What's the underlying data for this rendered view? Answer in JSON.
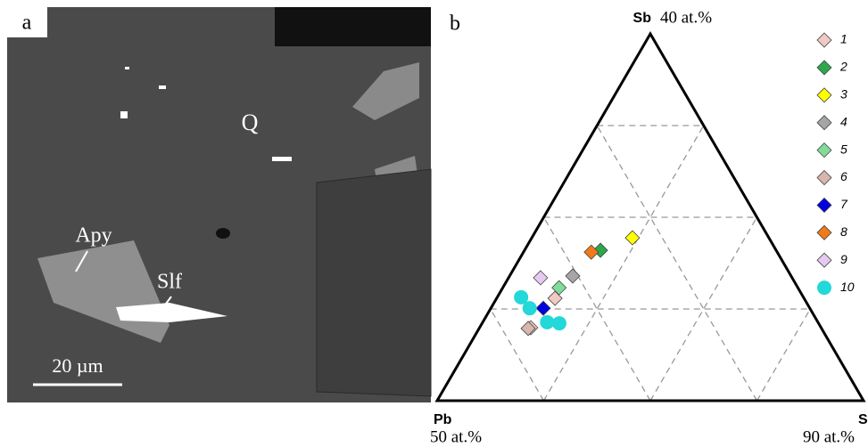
{
  "panel_a": {
    "label": "a",
    "annotations": [
      "Q",
      "Apy",
      "Slf"
    ],
    "scale_bar": "20 µm"
  },
  "chart_data": {
    "type": "ternary",
    "panel_label": "b",
    "corners": {
      "top": "Sb",
      "top_note": "40 at.%",
      "left": "Pb",
      "left_note": "50 at.%",
      "right": "S",
      "right_note": "90 at.%"
    },
    "ticks": [
      25,
      50,
      75
    ],
    "grid": true,
    "series": [
      {
        "name": "1",
        "color": "#f0c8c4",
        "marker": "diamond",
        "top": [
          27.9,
          19.9
        ],
        "right": [
          13.7,
          12.0
        ]
      },
      {
        "name": "2",
        "color": "#2ca84a",
        "marker": "diamond",
        "top": [
          41.0
        ],
        "right": [
          17.8
        ]
      },
      {
        "name": "3",
        "color": "#ffff00",
        "marker": "diamond",
        "top": [
          44.4
        ],
        "right": [
          23.6
        ]
      },
      {
        "name": "4",
        "color": "#a6a6a6",
        "marker": "diamond",
        "top": [
          34.0
        ],
        "right": [
          14.8
        ]
      },
      {
        "name": "5",
        "color": "#7fdc9a",
        "marker": "diamond",
        "top": [
          30.8
        ],
        "right": [
          13.2
        ]
      },
      {
        "name": "6",
        "color": "#d7b6ac",
        "marker": "diamond",
        "top": [
          19.7
        ],
        "right": [
          11.5
        ]
      },
      {
        "name": "7",
        "color": "#0000e0",
        "marker": "diamond",
        "top": [
          25.2
        ],
        "right": [
          12.3
        ]
      },
      {
        "name": "8",
        "color": "#f07a1a",
        "marker": "diamond",
        "top": [
          40.5
        ],
        "right": [
          15.9
        ]
      },
      {
        "name": "9",
        "color": "#e6c8f0",
        "marker": "diamond",
        "top": [
          33.5
        ],
        "right": [
          7.5
        ]
      },
      {
        "name": "10",
        "color": "#22d8d8",
        "marker": "circle",
        "top": [
          28.2,
          25.2,
          21.4,
          21.1
        ],
        "right": [
          5.6,
          9.1,
          15.1,
          18.1
        ]
      }
    ]
  }
}
